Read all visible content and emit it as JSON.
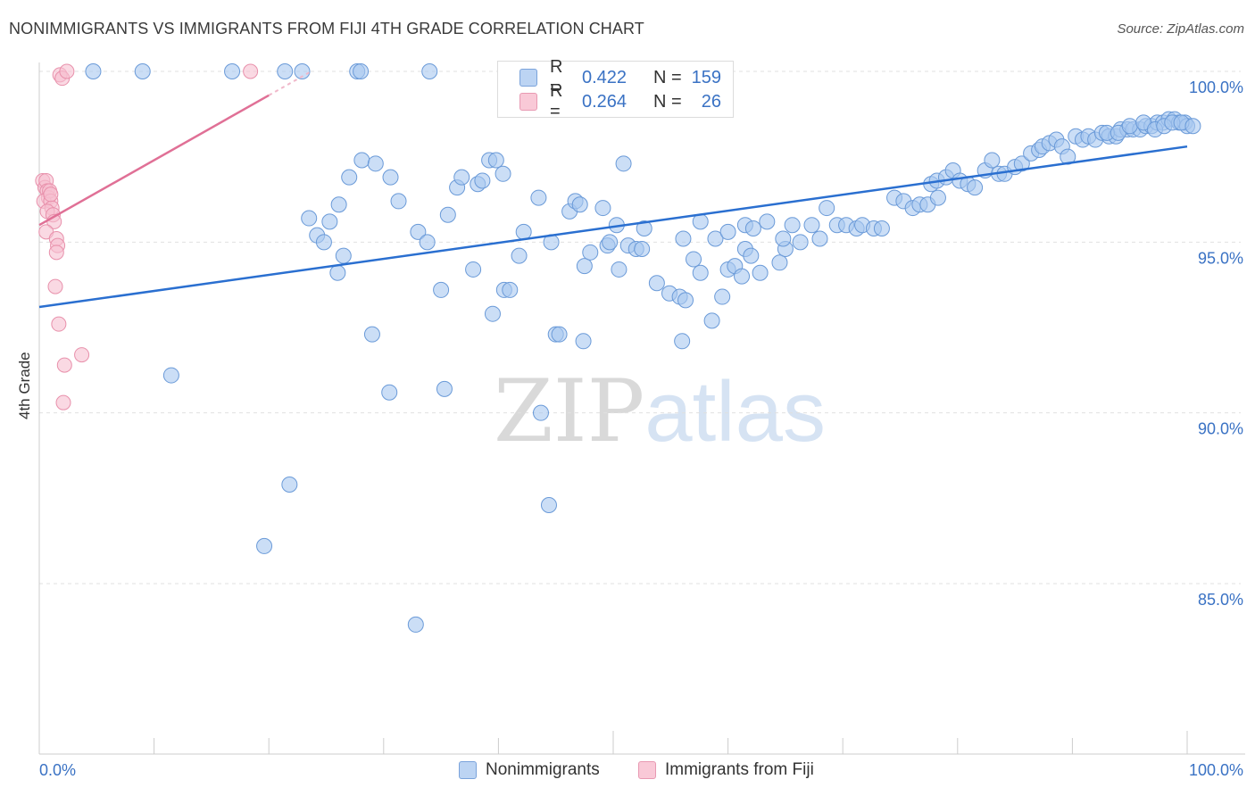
{
  "title": "NONIMMIGRANTS VS IMMIGRANTS FROM FIJI 4TH GRADE CORRELATION CHART",
  "source": "Source: ZipAtlas.com",
  "watermark": {
    "zip": "ZIP",
    "atlas": "atlas"
  },
  "colors": {
    "blue_fill": "#a8c8f0",
    "blue_stroke": "#6a9ad8",
    "blue_line": "#2a6fd0",
    "pink_fill": "#f6bfd0",
    "pink_stroke": "#e890ab",
    "pink_line": "#e07096",
    "axis_text": "#3a72c4",
    "grid": "#e0e0e0"
  },
  "legend": {
    "r_label": "R =",
    "n_label": "N =",
    "series": [
      {
        "r": "0.422",
        "n": "159"
      },
      {
        "r": "0.264",
        "n": "26"
      }
    ]
  },
  "bottom_legend": [
    "Nonimmigrants",
    "Immigrants from Fiji"
  ],
  "chart_data": {
    "type": "scatter",
    "title": "NONIMMIGRANTS VS IMMIGRANTS FROM FIJI 4TH GRADE CORRELATION CHART",
    "xlabel": "",
    "ylabel": "4th Grade",
    "xlim": [
      0,
      100
    ],
    "ylim": [
      80.5,
      100.9
    ],
    "x_tick_labels": [
      "0.0%",
      "100.0%"
    ],
    "y_ticks": [
      85,
      90,
      95,
      100
    ],
    "y_tick_labels": [
      "85.0%",
      "90.0%",
      "95.0%",
      "100.0%"
    ],
    "grid": true,
    "legend_position": "top-center",
    "series": [
      {
        "name": "Nonimmigrants",
        "r": 0.422,
        "n": 159,
        "trend": {
          "x": [
            0,
            100
          ],
          "y": [
            93.1,
            97.8
          ]
        },
        "points": [
          [
            4.7,
            100
          ],
          [
            9.0,
            100
          ],
          [
            16.8,
            100
          ],
          [
            21.4,
            100
          ],
          [
            22.9,
            100
          ],
          [
            27.7,
            100
          ],
          [
            28.0,
            100
          ],
          [
            34.0,
            100
          ],
          [
            11.5,
            91.1
          ],
          [
            21.8,
            87.9
          ],
          [
            19.6,
            86.1
          ],
          [
            32.8,
            83.8
          ],
          [
            30.5,
            90.6
          ],
          [
            35.3,
            90.7
          ],
          [
            43.7,
            90.0
          ],
          [
            44.4,
            87.3
          ],
          [
            29.0,
            92.3
          ],
          [
            39.5,
            92.9
          ],
          [
            45.0,
            92.3
          ],
          [
            45.3,
            92.3
          ],
          [
            47.4,
            92.1
          ],
          [
            56.0,
            92.1
          ],
          [
            58.6,
            92.7
          ],
          [
            26.0,
            94.1
          ],
          [
            26.5,
            94.6
          ],
          [
            35.0,
            93.6
          ],
          [
            37.8,
            94.2
          ],
          [
            40.5,
            93.6
          ],
          [
            41.0,
            93.6
          ],
          [
            41.8,
            94.6
          ],
          [
            47.5,
            94.3
          ],
          [
            48.0,
            94.7
          ],
          [
            49.5,
            94.9
          ],
          [
            50.5,
            94.2
          ],
          [
            51.3,
            94.9
          ],
          [
            52.0,
            94.8
          ],
          [
            52.5,
            94.8
          ],
          [
            53.8,
            93.8
          ],
          [
            54.9,
            93.5
          ],
          [
            55.8,
            93.4
          ],
          [
            56.3,
            93.3
          ],
          [
            57.0,
            94.5
          ],
          [
            57.6,
            94.1
          ],
          [
            59.5,
            93.4
          ],
          [
            60.0,
            94.2
          ],
          [
            60.6,
            94.3
          ],
          [
            61.2,
            94.0
          ],
          [
            61.5,
            94.8
          ],
          [
            62.0,
            94.6
          ],
          [
            62.8,
            94.1
          ],
          [
            64.5,
            94.4
          ],
          [
            65.0,
            94.8
          ],
          [
            23.5,
            95.7
          ],
          [
            24.2,
            95.2
          ],
          [
            24.8,
            95.0
          ],
          [
            25.3,
            95.6
          ],
          [
            26.1,
            96.1
          ],
          [
            27.0,
            96.9
          ],
          [
            28.1,
            97.4
          ],
          [
            29.3,
            97.3
          ],
          [
            30.6,
            96.9
          ],
          [
            31.3,
            96.2
          ],
          [
            33.0,
            95.3
          ],
          [
            33.8,
            95.0
          ],
          [
            35.6,
            95.8
          ],
          [
            36.4,
            96.6
          ],
          [
            36.8,
            96.9
          ],
          [
            38.2,
            96.7
          ],
          [
            38.6,
            96.8
          ],
          [
            39.2,
            97.4
          ],
          [
            39.8,
            97.4
          ],
          [
            40.4,
            97.0
          ],
          [
            42.2,
            95.3
          ],
          [
            43.5,
            96.3
          ],
          [
            44.6,
            95.0
          ],
          [
            46.2,
            95.9
          ],
          [
            46.7,
            96.2
          ],
          [
            47.1,
            96.1
          ],
          [
            49.1,
            96.0
          ],
          [
            49.7,
            95.0
          ],
          [
            50.3,
            95.5
          ],
          [
            50.9,
            97.3
          ],
          [
            52.7,
            95.4
          ],
          [
            56.1,
            95.1
          ],
          [
            57.6,
            95.6
          ],
          [
            58.9,
            95.1
          ],
          [
            60.0,
            95.3
          ],
          [
            61.5,
            95.5
          ],
          [
            62.2,
            95.4
          ],
          [
            63.4,
            95.6
          ],
          [
            64.8,
            95.1
          ],
          [
            65.6,
            95.5
          ],
          [
            66.3,
            95.0
          ],
          [
            67.3,
            95.5
          ],
          [
            68.0,
            95.1
          ],
          [
            68.6,
            96.0
          ],
          [
            69.5,
            95.5
          ],
          [
            70.3,
            95.5
          ],
          [
            71.2,
            95.4
          ],
          [
            71.7,
            95.5
          ],
          [
            72.7,
            95.4
          ],
          [
            73.4,
            95.4
          ],
          [
            74.5,
            96.3
          ],
          [
            75.3,
            96.2
          ],
          [
            76.1,
            96.0
          ],
          [
            76.7,
            96.1
          ],
          [
            77.4,
            96.1
          ],
          [
            78.3,
            96.3
          ],
          [
            77.7,
            96.7
          ],
          [
            78.2,
            96.8
          ],
          [
            79.0,
            96.9
          ],
          [
            79.6,
            97.1
          ],
          [
            80.2,
            96.8
          ],
          [
            80.9,
            96.7
          ],
          [
            81.5,
            96.6
          ],
          [
            82.4,
            97.1
          ],
          [
            83.0,
            97.4
          ],
          [
            83.6,
            97.0
          ],
          [
            84.1,
            97.0
          ],
          [
            85.0,
            97.2
          ],
          [
            85.6,
            97.3
          ],
          [
            86.4,
            97.6
          ],
          [
            87.1,
            97.7
          ],
          [
            87.4,
            97.8
          ],
          [
            88.0,
            97.9
          ],
          [
            88.6,
            98.0
          ],
          [
            89.1,
            97.8
          ],
          [
            89.6,
            97.5
          ],
          [
            90.3,
            98.1
          ],
          [
            90.9,
            98.0
          ],
          [
            91.4,
            98.1
          ],
          [
            92.0,
            98.0
          ],
          [
            92.6,
            98.2
          ],
          [
            93.2,
            98.1
          ],
          [
            93.8,
            98.1
          ],
          [
            94.2,
            98.3
          ],
          [
            94.8,
            98.3
          ],
          [
            95.3,
            98.3
          ],
          [
            95.9,
            98.3
          ],
          [
            96.4,
            98.4
          ],
          [
            96.9,
            98.4
          ],
          [
            97.4,
            98.5
          ],
          [
            97.9,
            98.5
          ],
          [
            98.4,
            98.6
          ],
          [
            98.9,
            98.6
          ],
          [
            99.3,
            98.5
          ],
          [
            99.8,
            98.5
          ],
          [
            100.0,
            98.4
          ],
          [
            93.0,
            98.2
          ],
          [
            94.0,
            98.2
          ],
          [
            95.0,
            98.4
          ],
          [
            96.2,
            98.5
          ],
          [
            97.2,
            98.3
          ],
          [
            98.0,
            98.4
          ],
          [
            98.7,
            98.5
          ],
          [
            99.5,
            98.5
          ],
          [
            100.5,
            98.4
          ]
        ]
      },
      {
        "name": "Immigrants from Fiji",
        "r": 0.264,
        "n": 26,
        "trend": {
          "x": [
            0,
            20
          ],
          "y": [
            95.5,
            99.3
          ]
        },
        "points": [
          [
            0.3,
            96.8
          ],
          [
            0.5,
            96.6
          ],
          [
            0.6,
            96.8
          ],
          [
            0.7,
            96.5
          ],
          [
            0.8,
            96.3
          ],
          [
            0.4,
            96.2
          ],
          [
            0.9,
            96.5
          ],
          [
            1.0,
            96.2
          ],
          [
            1.1,
            96.0
          ],
          [
            0.7,
            95.9
          ],
          [
            1.2,
            95.8
          ],
          [
            1.3,
            95.6
          ],
          [
            0.6,
            95.3
          ],
          [
            1.5,
            95.1
          ],
          [
            1.6,
            94.9
          ],
          [
            1.5,
            94.7
          ],
          [
            1.4,
            93.7
          ],
          [
            1.7,
            92.6
          ],
          [
            2.2,
            91.4
          ],
          [
            3.7,
            91.7
          ],
          [
            2.1,
            90.3
          ],
          [
            1.8,
            99.9
          ],
          [
            2.0,
            99.8
          ],
          [
            2.4,
            100
          ],
          [
            18.4,
            100
          ],
          [
            1.0,
            96.4
          ]
        ]
      }
    ]
  }
}
